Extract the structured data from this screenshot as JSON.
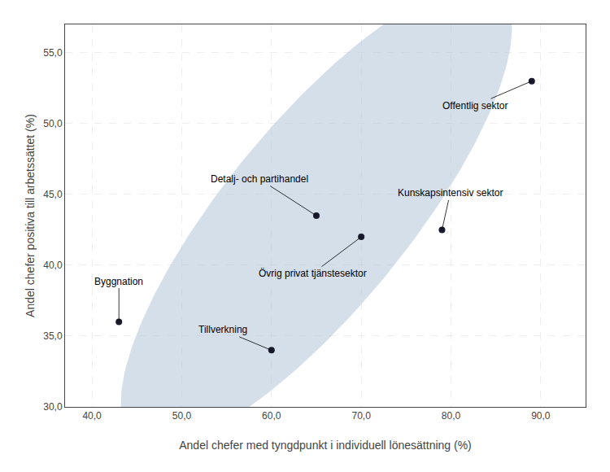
{
  "chart_data": {
    "type": "scatter",
    "x": [
      43,
      60,
      65,
      70,
      79,
      89
    ],
    "values": [
      36,
      34,
      43.5,
      42,
      42.5,
      53
    ],
    "annotations": [
      "Byggnation",
      "Tillverkning",
      "Detalj- och partihandel",
      "Övrig privat tjänstesektor",
      "Kunskapsintensiv sektor",
      "Offentlig sektor"
    ],
    "color": "#1a1a2e",
    "ellipse": {
      "x": 65,
      "y": 43.5,
      "width": 52,
      "height": 16,
      "angle": 35,
      "color": "#b0c4d8"
    },
    "x_label": "Andel chefer med tyngdpunkt i individuell lönesättning (%)",
    "y_label": "Andel chefer positiva till arbetssättet (%)",
    "xlim": [
      37,
      95
    ],
    "ylim": [
      30,
      57
    ],
    "xticks": [
      {
        "value": 40,
        "label": "40,0"
      },
      {
        "value": 50,
        "label": "50,0"
      },
      {
        "value": 60,
        "label": "60,0"
      },
      {
        "value": 70,
        "label": "70,0"
      },
      {
        "value": 80,
        "label": "80,0"
      },
      {
        "value": 90,
        "label": "90,0"
      }
    ],
    "yticks": [
      {
        "value": 30,
        "label": "30,0"
      },
      {
        "value": 35,
        "label": "35,0"
      },
      {
        "value": 40,
        "label": "40,0"
      },
      {
        "value": 45,
        "label": "45,0"
      },
      {
        "value": 50,
        "label": "50,0"
      },
      {
        "value": 55,
        "label": "55,0"
      }
    ],
    "grid": true
  }
}
